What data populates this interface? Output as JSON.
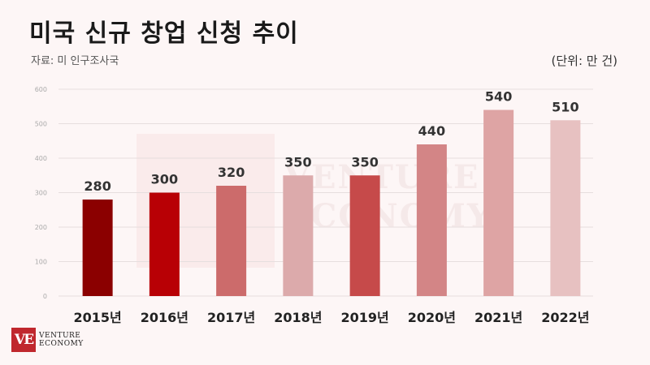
{
  "title": "미국 신규 창업 신청 추이",
  "source": "자료: 미 인구조사국",
  "unit": "(단위: 만 건)",
  "logo": {
    "mark": "VE",
    "line1": "VENTURE",
    "line2": "ECONOMY"
  },
  "chart_data": {
    "type": "bar",
    "title": "미국 신규 창업 신청 추이",
    "xlabel": "",
    "ylabel": "",
    "categories": [
      "2015년",
      "2016년",
      "2017년",
      "2018년",
      "2019년",
      "2020년",
      "2021년",
      "2022년"
    ],
    "values": [
      280,
      300,
      320,
      350,
      350,
      440,
      540,
      510
    ],
    "ylim": [
      0,
      600
    ],
    "yticks": [
      0,
      100,
      200,
      300,
      400,
      500,
      600
    ],
    "grid": true,
    "colors": [
      "#8b0000",
      "#b80005",
      "#cc6b6b",
      "#dcaaab",
      "#c64a4a",
      "#d38586",
      "#dea4a4",
      "#e7c1c1"
    ]
  }
}
